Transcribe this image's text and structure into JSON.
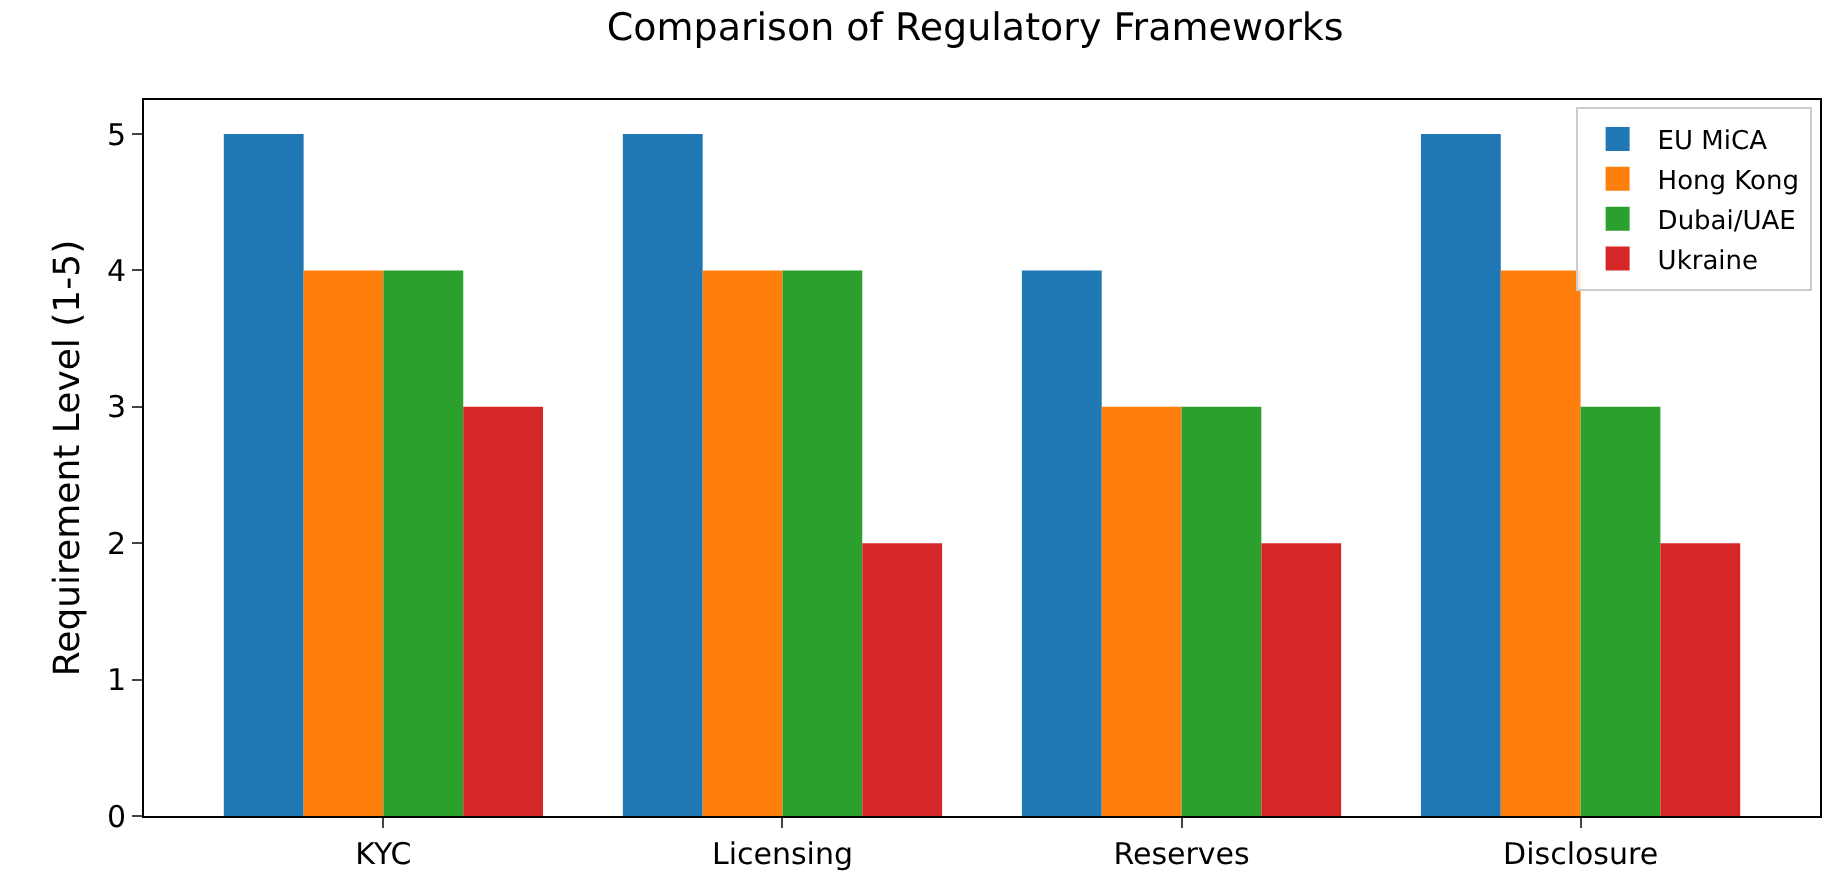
{
  "chart_data": {
    "type": "bar",
    "title": "Comparison of Regulatory Frameworks",
    "ylabel": "Requirement Level (1-5)",
    "categories": [
      "KYC",
      "Licensing",
      "Reserves",
      "Disclosure"
    ],
    "series": [
      {
        "name": "EU MiCA",
        "color": "#1f77b4",
        "values": [
          5,
          5,
          4,
          5
        ]
      },
      {
        "name": "Hong Kong",
        "color": "#ff7f0e",
        "values": [
          4,
          4,
          3,
          4
        ]
      },
      {
        "name": "Dubai/UAE",
        "color": "#2ca02c",
        "values": [
          4,
          4,
          3,
          3
        ]
      },
      {
        "name": "Ukraine",
        "color": "#d62728",
        "values": [
          3,
          2,
          2,
          2
        ]
      }
    ],
    "ylim": [
      0,
      5.25
    ],
    "yticks": [
      0,
      1,
      2,
      3,
      4,
      5
    ],
    "grid": false,
    "legend": "top right"
  }
}
